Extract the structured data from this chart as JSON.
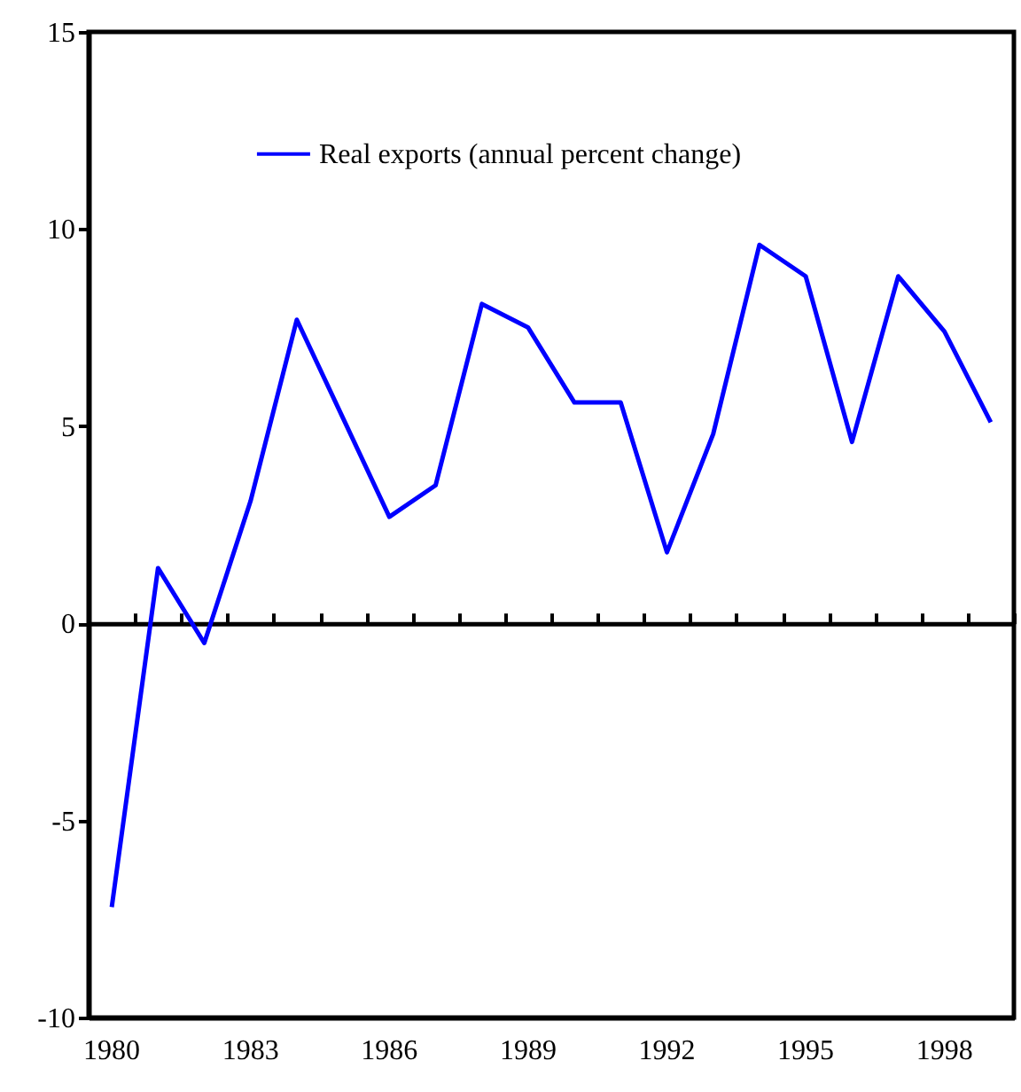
{
  "chart_data": {
    "type": "line",
    "categories": [
      "1980",
      null,
      null,
      "1983",
      null,
      null,
      "1986",
      null,
      null,
      "1989",
      null,
      null,
      "1992",
      null,
      null,
      "1995",
      null,
      null,
      "1998",
      null
    ],
    "series": [
      {
        "name": "Real exports (annual percent change)",
        "color": "#0000ff",
        "values": [
          -7.2,
          1.4,
          -0.5,
          3.1,
          7.7,
          5.2,
          2.7,
          3.5,
          8.1,
          7.5,
          5.6,
          5.6,
          1.8,
          4.8,
          9.6,
          8.8,
          4.6,
          8.8,
          7.4,
          5.1
        ]
      }
    ],
    "ylim": [
      -10,
      15
    ],
    "yticks": [
      -10,
      -5,
      0,
      5,
      10,
      15
    ],
    "legend": "top",
    "marker": "none",
    "line_style": "solid"
  }
}
